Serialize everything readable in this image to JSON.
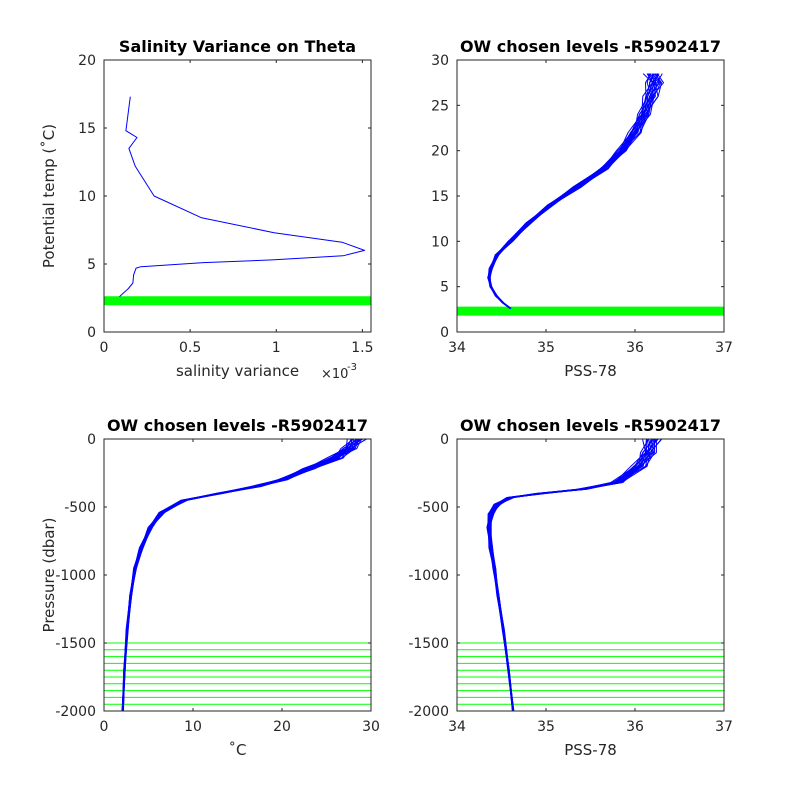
{
  "chart_data": [
    {
      "type": "line",
      "title": "Salinity Variance on Theta",
      "xlabel": "salinity variance",
      "ylabel": "Potential temp (˚C)",
      "x_exponent_label": "×10",
      "x_exponent_value": "-3",
      "xlim": [
        0,
        0.00155
      ],
      "ylim": [
        0,
        20
      ],
      "xticks": [
        0,
        0.0005,
        0.001,
        0.0015
      ],
      "xtick_labels": [
        "0",
        "0.5",
        "1",
        "1.5"
      ],
      "yticks": [
        0,
        5,
        10,
        15,
        20
      ],
      "ytick_labels": [
        "0",
        "5",
        "10",
        "15",
        "20"
      ],
      "series": [
        {
          "color": "#0000ff",
          "x": [
            9e-05,
            0.00014,
            0.00017,
            0.00017,
            0.00018,
            0.00019,
            0.00021,
            0.00058,
            0.00098,
            0.00138,
            0.00152,
            0.00138,
            0.00098,
            0.00058,
            0.00028,
            0.00018,
            0.00016,
            0.00017,
            0.00014,
            0.00016
          ],
          "y": [
            2.6,
            3.2,
            3.6,
            4.2,
            4.5,
            4.7,
            4.8,
            5.1,
            5.3,
            5.6,
            6.0,
            6.6,
            7.3,
            8.4,
            10.0,
            12.2,
            13.5,
            14.3,
            14.8,
            17.3
          ]
        }
      ],
      "hbands": [
        {
          "y": 2.3,
          "color": "#00ff00"
        }
      ]
    },
    {
      "type": "line",
      "title": "OW chosen levels -R5902417",
      "xlabel": "PSS-78",
      "ylabel": "",
      "xlim": [
        34,
        37
      ],
      "ylim": [
        0,
        30
      ],
      "xticks": [
        34,
        35,
        36,
        37
      ],
      "xtick_labels": [
        "34",
        "35",
        "36",
        "37"
      ],
      "yticks": [
        0,
        5,
        10,
        15,
        20,
        25,
        30
      ],
      "ytick_labels": [
        "0",
        "5",
        "10",
        "15",
        "20",
        "25",
        "30"
      ],
      "series": [
        {
          "color": "#0000ff",
          "profile_count": 18,
          "x": [
            34.6,
            34.52,
            34.44,
            34.38,
            34.36,
            34.38,
            34.45,
            34.6,
            34.8,
            35.05,
            35.35,
            35.65,
            35.85,
            36.0,
            36.1,
            36.18,
            36.22,
            36.2
          ],
          "y": [
            2.6,
            3.2,
            4.0,
            5.0,
            6.0,
            7.0,
            8.5,
            10.0,
            12.0,
            14.0,
            16.0,
            18.0,
            20.0,
            22.0,
            24.0,
            26.0,
            27.5,
            28.5
          ]
        }
      ],
      "hbands": [
        {
          "y": 2.3,
          "color": "#00ff00"
        }
      ]
    },
    {
      "type": "line",
      "title": "OW chosen levels -R5902417",
      "xlabel": "˚C",
      "ylabel": "Pressure (dbar)",
      "xlim": [
        0,
        30
      ],
      "ylim": [
        -2000,
        0
      ],
      "xticks": [
        0,
        10,
        20,
        30
      ],
      "xtick_labels": [
        "0",
        "10",
        "20",
        "30"
      ],
      "yticks": [
        -2000,
        -1500,
        -1000,
        -500,
        0
      ],
      "ytick_labels": [
        "-2000",
        "-1500",
        "-1000",
        "-500",
        "0"
      ],
      "series": [
        {
          "color": "#0000ff",
          "profile_count": 18,
          "x": [
            2.1,
            2.3,
            2.6,
            3.0,
            3.5,
            4.2,
            5.2,
            6.5,
            9.0,
            13.0,
            17.0,
            20.0,
            23.0,
            26.0,
            27.5,
            28.5
          ],
          "y": [
            -2000,
            -1700,
            -1400,
            -1150,
            -950,
            -800,
            -650,
            -540,
            -450,
            -400,
            -350,
            -300,
            -220,
            -140,
            -70,
            0
          ]
        }
      ],
      "hlines": {
        "color": "#00ff00",
        "y": [
          -1500,
          -1550,
          -1600,
          -1650,
          -1700,
          -1750,
          -1800,
          -1850,
          -1900,
          -1950,
          -2000
        ]
      }
    },
    {
      "type": "line",
      "title": "OW chosen levels -R5902417",
      "xlabel": "PSS-78",
      "ylabel": "",
      "xlim": [
        34,
        37
      ],
      "ylim": [
        -2000,
        0
      ],
      "xticks": [
        34,
        35,
        36,
        37
      ],
      "xtick_labels": [
        "34",
        "35",
        "36",
        "37"
      ],
      "yticks": [
        -2000,
        -1500,
        -1000,
        -500,
        0
      ],
      "ytick_labels": [
        "-2000",
        "-1500",
        "-1000",
        "-500",
        "0"
      ],
      "series": [
        {
          "color": "#0000ff",
          "profile_count": 18,
          "x": [
            34.63,
            34.58,
            34.52,
            34.46,
            34.42,
            34.38,
            34.36,
            34.38,
            34.45,
            34.6,
            34.95,
            35.4,
            35.8,
            36.05,
            36.15,
            36.2
          ],
          "y": [
            -2000,
            -1700,
            -1400,
            -1150,
            -950,
            -800,
            -650,
            -550,
            -480,
            -430,
            -400,
            -370,
            -320,
            -200,
            -100,
            0
          ]
        }
      ],
      "hlines": {
        "color": "#00ff00",
        "y": [
          -1500,
          -1550,
          -1600,
          -1650,
          -1700,
          -1750,
          -1800,
          -1850,
          -1900,
          -1950,
          -2000
        ]
      }
    }
  ]
}
